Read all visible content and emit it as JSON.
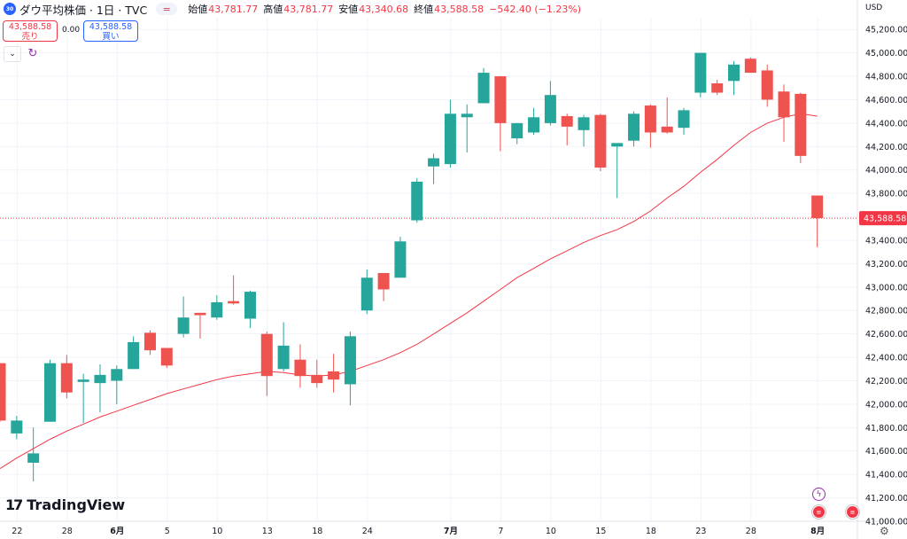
{
  "header": {
    "symbol_badge": "30",
    "title": "ダウ平均株価 · 1日 · TVC",
    "ohlc": [
      {
        "label": "始値",
        "value": "43,781.77"
      },
      {
        "label": "高値",
        "value": "43,781.77"
      },
      {
        "label": "安値",
        "value": "43,340.68"
      },
      {
        "label": "終値",
        "value": "43,588.58"
      }
    ],
    "change": "−542.40 (−1.23%)"
  },
  "trade": {
    "sell_price": "43,588.58",
    "sell_label": "売り",
    "spread": "0.00",
    "buy_price": "43,588.58",
    "buy_label": "買い"
  },
  "logo": "TradingView",
  "colors": {
    "up": "#26a69a",
    "down": "#ef5350",
    "ma": "#f23645",
    "grid": "#f0f3fa",
    "price_tag": "#f23645"
  },
  "icons": {
    "refresh": "refresh-icon",
    "collapse": "chevron-down-icon",
    "settings": "gear-icon",
    "event_flash": "lightning-icon",
    "event_us": "us-flag-icon"
  },
  "chart_data": {
    "type": "candlestick",
    "currency": "USD",
    "ylim": [
      41000,
      45300
    ],
    "y_ticks": [
      41000,
      41200,
      41400,
      41600,
      41800,
      42000,
      42200,
      42400,
      42600,
      42800,
      43000,
      43200,
      43400,
      43600,
      43800,
      44000,
      44200,
      44400,
      44600,
      44800,
      45000,
      45200
    ],
    "x_ticks": [
      {
        "label": "22",
        "index": 1
      },
      {
        "label": "28",
        "index": 4
      },
      {
        "label": "6月",
        "index": 7
      },
      {
        "label": "5",
        "index": 10
      },
      {
        "label": "10",
        "index": 13
      },
      {
        "label": "13",
        "index": 16
      },
      {
        "label": "18",
        "index": 19
      },
      {
        "label": "24",
        "index": 22
      },
      {
        "label": "7月",
        "index": 27
      },
      {
        "label": "7",
        "index": 30
      },
      {
        "label": "10",
        "index": 33
      },
      {
        "label": "15",
        "index": 36
      },
      {
        "label": "18",
        "index": 39
      },
      {
        "label": "23",
        "index": 42
      },
      {
        "label": "28",
        "index": 45
      },
      {
        "label": "8月",
        "index": 49
      }
    ],
    "last_price": 43588.58,
    "last_price_label": "43,588.58",
    "candles": [
      {
        "o": 42350,
        "h": 42350,
        "l": 41850,
        "c": 41860
      },
      {
        "o": 41750,
        "h": 41900,
        "l": 41700,
        "c": 41860
      },
      {
        "o": 41500,
        "h": 41800,
        "l": 41340,
        "c": 41580
      },
      {
        "o": 41850,
        "h": 42380,
        "l": 41850,
        "c": 42350
      },
      {
        "o": 42350,
        "h": 42420,
        "l": 42050,
        "c": 42100
      },
      {
        "o": 42190,
        "h": 42260,
        "l": 41840,
        "c": 42210
      },
      {
        "o": 42180,
        "h": 42340,
        "l": 41930,
        "c": 42250
      },
      {
        "o": 42200,
        "h": 42330,
        "l": 42000,
        "c": 42300
      },
      {
        "o": 42300,
        "h": 42580,
        "l": 42300,
        "c": 42530
      },
      {
        "o": 42610,
        "h": 42630,
        "l": 42420,
        "c": 42460
      },
      {
        "o": 42480,
        "h": 42480,
        "l": 42310,
        "c": 42330
      },
      {
        "o": 42600,
        "h": 42920,
        "l": 42570,
        "c": 42740
      },
      {
        "o": 42780,
        "h": 42780,
        "l": 42560,
        "c": 42760
      },
      {
        "o": 42740,
        "h": 42930,
        "l": 42720,
        "c": 42870
      },
      {
        "o": 42880,
        "h": 43100,
        "l": 42850,
        "c": 42860
      },
      {
        "o": 42730,
        "h": 42970,
        "l": 42650,
        "c": 42960
      },
      {
        "o": 42600,
        "h": 42620,
        "l": 42070,
        "c": 42240
      },
      {
        "o": 42300,
        "h": 42700,
        "l": 42280,
        "c": 42500
      },
      {
        "o": 42380,
        "h": 42510,
        "l": 42140,
        "c": 42240
      },
      {
        "o": 42250,
        "h": 42380,
        "l": 42140,
        "c": 42180
      },
      {
        "o": 42280,
        "h": 42430,
        "l": 42100,
        "c": 42210
      },
      {
        "o": 42170,
        "h": 42620,
        "l": 41990,
        "c": 42580
      },
      {
        "o": 42800,
        "h": 43150,
        "l": 42770,
        "c": 43080
      },
      {
        "o": 43120,
        "h": 43120,
        "l": 42880,
        "c": 42980
      },
      {
        "o": 43080,
        "h": 43430,
        "l": 43080,
        "c": 43390
      },
      {
        "o": 43570,
        "h": 43930,
        "l": 43550,
        "c": 43900
      },
      {
        "o": 44030,
        "h": 44140,
        "l": 43880,
        "c": 44100
      },
      {
        "o": 44050,
        "h": 44600,
        "l": 44020,
        "c": 44480
      },
      {
        "o": 44450,
        "h": 44560,
        "l": 44150,
        "c": 44480
      },
      {
        "o": 44570,
        "h": 44870,
        "l": 44570,
        "c": 44830
      },
      {
        "o": 44800,
        "h": 44800,
        "l": 44160,
        "c": 44400
      },
      {
        "o": 44270,
        "h": 44400,
        "l": 44220,
        "c": 44400
      },
      {
        "o": 44320,
        "h": 44530,
        "l": 44300,
        "c": 44450
      },
      {
        "o": 44400,
        "h": 44760,
        "l": 44380,
        "c": 44640
      },
      {
        "o": 44460,
        "h": 44480,
        "l": 44210,
        "c": 44370
      },
      {
        "o": 44340,
        "h": 44470,
        "l": 44200,
        "c": 44450
      },
      {
        "o": 44470,
        "h": 44480,
        "l": 43990,
        "c": 44020
      },
      {
        "o": 44200,
        "h": 44200,
        "l": 43760,
        "c": 44230
      },
      {
        "o": 44250,
        "h": 44500,
        "l": 44200,
        "c": 44480
      },
      {
        "o": 44550,
        "h": 44560,
        "l": 44190,
        "c": 44320
      },
      {
        "o": 44370,
        "h": 44620,
        "l": 44310,
        "c": 44320
      },
      {
        "o": 44360,
        "h": 44530,
        "l": 44300,
        "c": 44510
      },
      {
        "o": 44660,
        "h": 45000,
        "l": 44620,
        "c": 45000
      },
      {
        "o": 44740,
        "h": 44770,
        "l": 44640,
        "c": 44660
      },
      {
        "o": 44760,
        "h": 44930,
        "l": 44640,
        "c": 44900
      },
      {
        "o": 44950,
        "h": 44960,
        "l": 44840,
        "c": 44830
      },
      {
        "o": 44850,
        "h": 44900,
        "l": 44540,
        "c": 44600
      },
      {
        "o": 44670,
        "h": 44730,
        "l": 44240,
        "c": 44450
      },
      {
        "o": 44650,
        "h": 44660,
        "l": 44060,
        "c": 44120
      },
      {
        "o": 43781.77,
        "h": 43781.77,
        "l": 43340.68,
        "c": 43588.58
      }
    ],
    "ma": [
      41450,
      41540,
      41620,
      41700,
      41770,
      41830,
      41890,
      41940,
      41990,
      42040,
      42090,
      42130,
      42170,
      42210,
      42240,
      42260,
      42280,
      42270,
      42250,
      42240,
      42250,
      42280,
      42330,
      42380,
      42440,
      42510,
      42600,
      42690,
      42780,
      42880,
      42980,
      43080,
      43160,
      43240,
      43310,
      43380,
      43440,
      43490,
      43560,
      43650,
      43760,
      43860,
      43980,
      44090,
      44210,
      44320,
      44400,
      44450,
      44480,
      44460
    ]
  }
}
